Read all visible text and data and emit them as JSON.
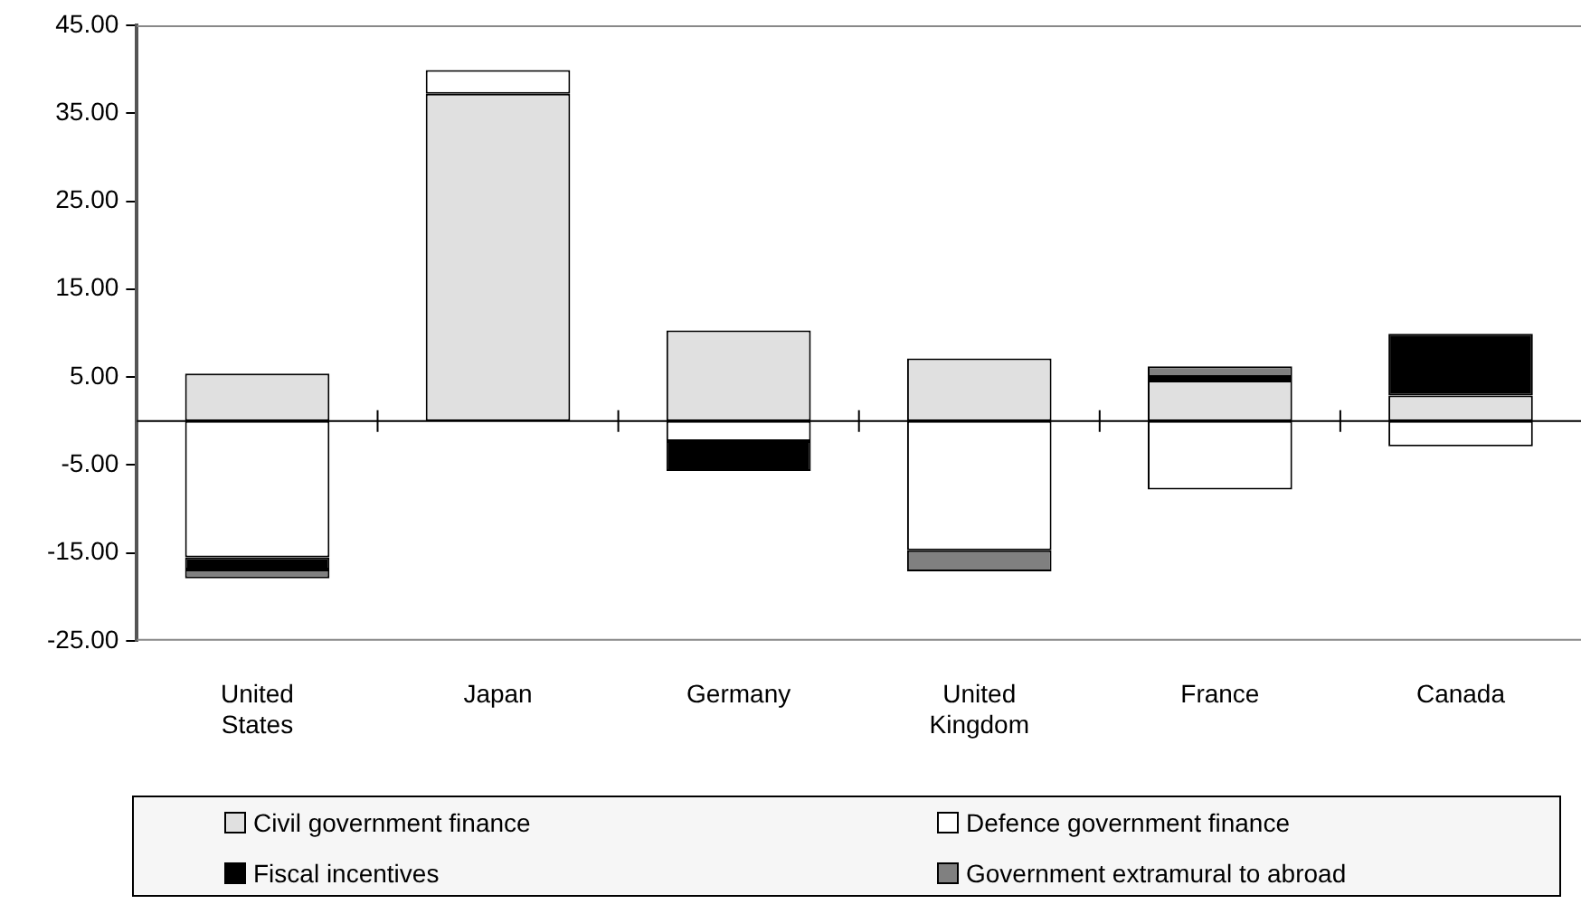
{
  "chart_data": {
    "type": "bar",
    "stacked": true,
    "categories": [
      "United States",
      "Japan",
      "Germany",
      "United Kingdom",
      "France",
      "Canada"
    ],
    "series": [
      {
        "name": "Civil government finance",
        "color": "#e0e0e0",
        "values": [
          5.4,
          37.2,
          10.3,
          7.1,
          4.6,
          2.9
        ]
      },
      {
        "name": "Defence government finance",
        "color": "#ffffff",
        "values": [
          -15.5,
          2.7,
          -2.3,
          -14.7,
          -7.8,
          -2.9
        ]
      },
      {
        "name": "Fiscal incentives",
        "color": "#000000",
        "values": [
          -1.4,
          null,
          -3.4,
          null,
          0.4,
          7.0
        ]
      },
      {
        "name": "Government extramural to abroad",
        "color": "#808080",
        "values": [
          -1.0,
          null,
          null,
          -2.4,
          1.2,
          null
        ]
      }
    ],
    "ylim": [
      -25,
      45
    ],
    "yticks": [
      {
        "value": -25,
        "label": "-25.00"
      },
      {
        "value": -15,
        "label": "-15.00"
      },
      {
        "value": -5,
        "label": "-5.00"
      },
      {
        "value": 5,
        "label": "5.00"
      },
      {
        "value": 15,
        "label": "15.00"
      },
      {
        "value": 25,
        "label": "25.00"
      },
      {
        "value": 35,
        "label": "35.00"
      },
      {
        "value": 45,
        "label": "45.00"
      }
    ],
    "grid": false,
    "legend": "bottom"
  }
}
